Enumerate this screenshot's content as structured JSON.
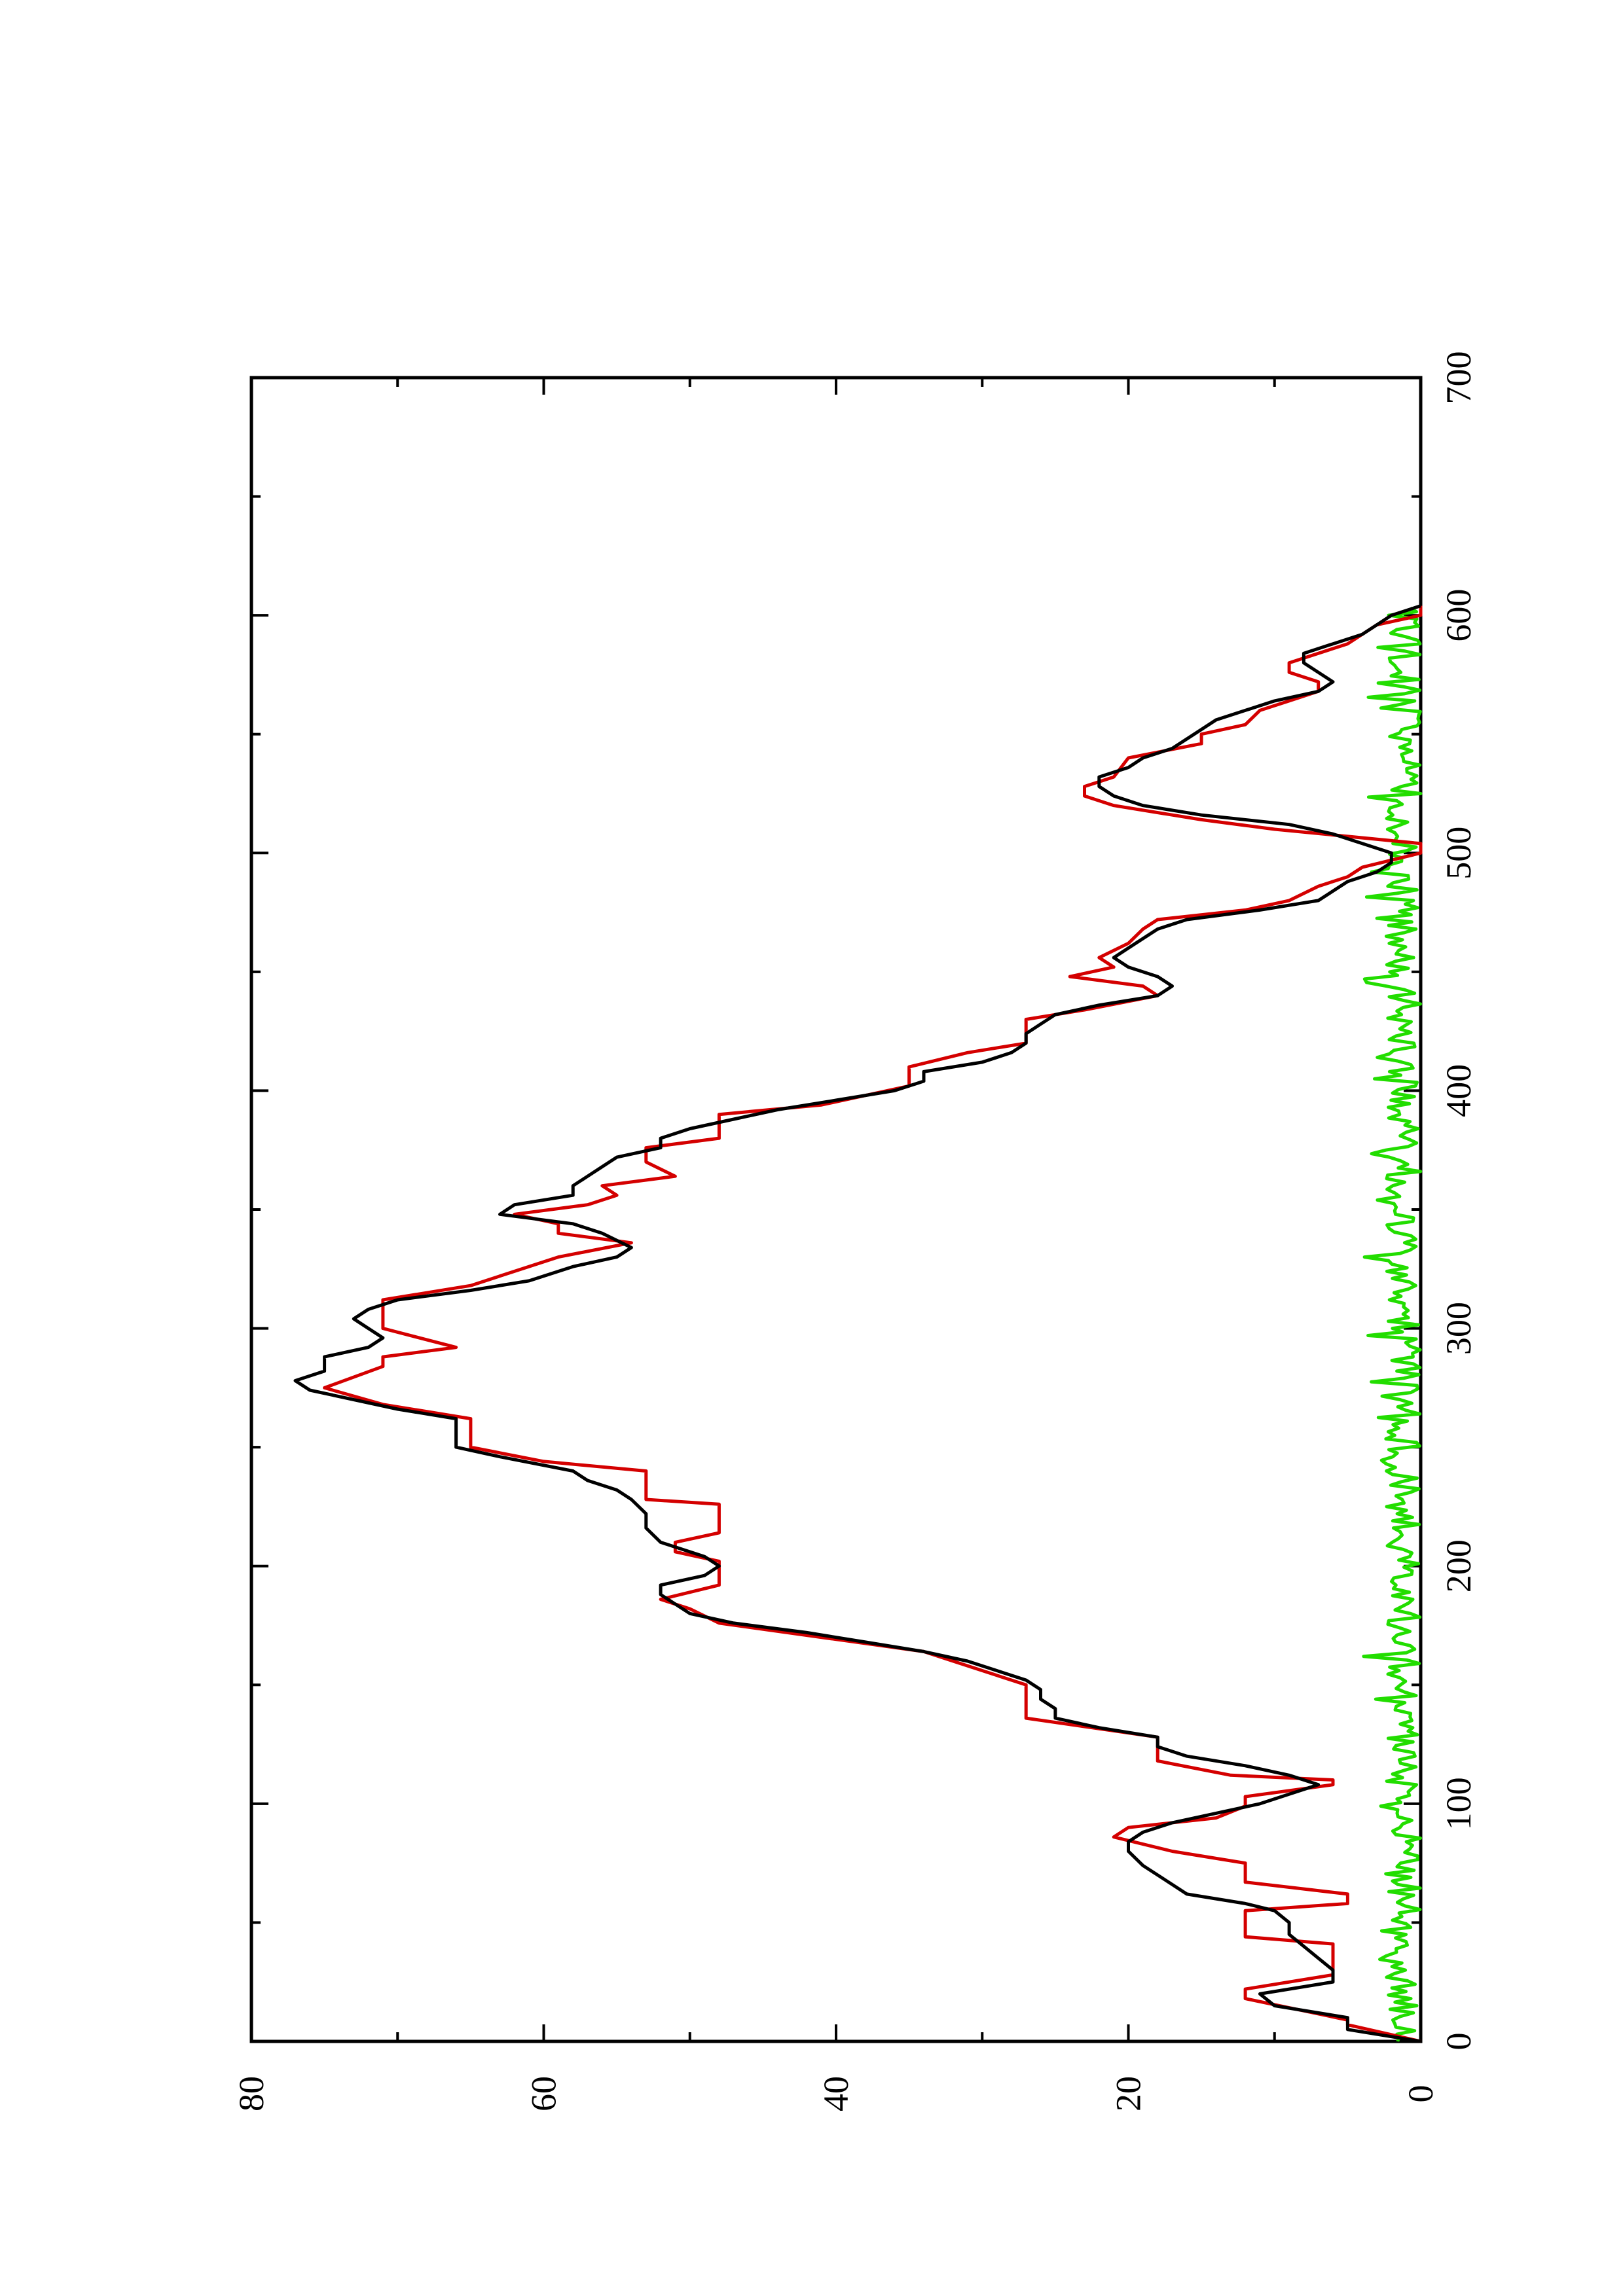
{
  "chart_data": {
    "type": "line",
    "orientation": "rotated 90 degrees counter-clockwise",
    "title": "",
    "xlabel": "",
    "ylabel": "",
    "xlim": [
      0,
      700
    ],
    "ylim": [
      0,
      80
    ],
    "x_ticks": [
      0,
      100,
      200,
      300,
      400,
      500,
      600,
      700
    ],
    "y_ticks": [
      0,
      20,
      40,
      60,
      80
    ],
    "x_tick_labels": [
      "0",
      "100",
      "200",
      "300",
      "400",
      "500",
      "600",
      "700"
    ],
    "y_tick_labels": [
      "0",
      "20",
      "40",
      "60",
      "80"
    ],
    "grid": false,
    "legend": "none",
    "series": [
      {
        "color": "#000000",
        "style": "smooth",
        "points": [
          [
            0,
            0
          ],
          [
            5,
            5
          ],
          [
            10,
            5
          ],
          [
            15,
            10
          ],
          [
            20,
            11
          ],
          [
            25,
            6
          ],
          [
            30,
            6
          ],
          [
            35,
            7
          ],
          [
            40,
            8
          ],
          [
            45,
            9
          ],
          [
            50,
            9
          ],
          [
            55,
            10
          ],
          [
            58,
            12
          ],
          [
            62,
            16
          ],
          [
            66,
            17
          ],
          [
            70,
            18
          ],
          [
            74,
            19
          ],
          [
            80,
            20
          ],
          [
            84,
            20
          ],
          [
            88,
            19
          ],
          [
            92,
            17
          ],
          [
            96,
            14
          ],
          [
            100,
            11
          ],
          [
            104,
            9
          ],
          [
            108,
            7
          ],
          [
            112,
            9
          ],
          [
            116,
            12
          ],
          [
            120,
            16
          ],
          [
            124,
            18
          ],
          [
            128,
            18
          ],
          [
            132,
            22
          ],
          [
            136,
            25
          ],
          [
            140,
            25
          ],
          [
            144,
            26
          ],
          [
            148,
            26
          ],
          [
            152,
            27
          ],
          [
            156,
            29
          ],
          [
            160,
            31
          ],
          [
            164,
            34
          ],
          [
            168,
            38
          ],
          [
            172,
            42
          ],
          [
            176,
            47
          ],
          [
            180,
            50
          ],
          [
            184,
            51
          ],
          [
            188,
            52
          ],
          [
            192,
            52
          ],
          [
            196,
            49
          ],
          [
            200,
            48
          ],
          [
            204,
            49
          ],
          [
            210,
            52
          ],
          [
            216,
            53
          ],
          [
            222,
            53
          ],
          [
            228,
            54
          ],
          [
            232,
            55
          ],
          [
            236,
            57
          ],
          [
            240,
            58
          ],
          [
            246,
            63
          ],
          [
            250,
            66
          ],
          [
            256,
            66
          ],
          [
            262,
            66
          ],
          [
            266,
            70
          ],
          [
            270,
            73
          ],
          [
            274,
            76
          ],
          [
            278,
            77
          ],
          [
            282,
            75
          ],
          [
            288,
            75
          ],
          [
            292,
            72
          ],
          [
            296,
            71
          ],
          [
            300,
            72
          ],
          [
            304,
            73
          ],
          [
            308,
            72
          ],
          [
            312,
            70
          ],
          [
            316,
            65
          ],
          [
            320,
            61
          ],
          [
            326,
            58
          ],
          [
            330,
            55
          ],
          [
            334,
            54
          ],
          [
            340,
            56
          ],
          [
            344,
            58
          ],
          [
            348,
            63
          ],
          [
            352,
            62
          ],
          [
            356,
            58
          ],
          [
            360,
            58
          ],
          [
            364,
            57
          ],
          [
            368,
            56
          ],
          [
            372,
            55
          ],
          [
            376,
            52
          ],
          [
            380,
            52
          ],
          [
            384,
            50
          ],
          [
            388,
            47
          ],
          [
            392,
            44
          ],
          [
            396,
            40
          ],
          [
            400,
            36
          ],
          [
            404,
            34
          ],
          [
            408,
            34
          ],
          [
            412,
            30
          ],
          [
            416,
            28
          ],
          [
            420,
            27
          ],
          [
            424,
            27
          ],
          [
            428,
            26
          ],
          [
            432,
            25
          ],
          [
            436,
            22
          ],
          [
            440,
            18
          ],
          [
            444,
            17
          ],
          [
            448,
            18
          ],
          [
            452,
            20
          ],
          [
            456,
            21
          ],
          [
            460,
            20
          ],
          [
            464,
            19
          ],
          [
            468,
            18
          ],
          [
            472,
            16
          ],
          [
            476,
            11
          ],
          [
            480,
            7
          ],
          [
            484,
            6
          ],
          [
            488,
            5
          ],
          [
            492,
            3
          ],
          [
            496,
            2
          ],
          [
            500,
            2
          ],
          [
            504,
            4
          ],
          [
            508,
            6
          ],
          [
            512,
            9
          ],
          [
            516,
            15
          ],
          [
            520,
            19
          ],
          [
            524,
            21
          ],
          [
            528,
            22
          ],
          [
            532,
            22
          ],
          [
            536,
            20
          ],
          [
            540,
            19
          ],
          [
            544,
            17
          ],
          [
            548,
            16
          ],
          [
            552,
            15
          ],
          [
            556,
            14
          ],
          [
            560,
            12
          ],
          [
            564,
            10
          ],
          [
            568,
            7
          ],
          [
            572,
            6
          ],
          [
            576,
            7
          ],
          [
            580,
            8
          ],
          [
            584,
            8
          ],
          [
            588,
            6
          ],
          [
            592,
            4
          ],
          [
            596,
            3
          ],
          [
            600,
            2
          ],
          [
            604,
            0
          ]
        ]
      },
      {
        "color": "#d40000",
        "style": "stepped",
        "points": [
          [
            0,
            0
          ],
          [
            7,
            5
          ],
          [
            9,
            5
          ],
          [
            18,
            12
          ],
          [
            22,
            12
          ],
          [
            28,
            6
          ],
          [
            33,
            6
          ],
          [
            38,
            6
          ],
          [
            41,
            6
          ],
          [
            44,
            12
          ],
          [
            55,
            12
          ],
          [
            58,
            5
          ],
          [
            62,
            5
          ],
          [
            67,
            12
          ],
          [
            75,
            12
          ],
          [
            80,
            17
          ],
          [
            86,
            21
          ],
          [
            90,
            20
          ],
          [
            94,
            14
          ],
          [
            99,
            12
          ],
          [
            103,
            12
          ],
          [
            108,
            6
          ],
          [
            110,
            6
          ],
          [
            112,
            13
          ],
          [
            118,
            18
          ],
          [
            128,
            18
          ],
          [
            136,
            27
          ],
          [
            150,
            27
          ],
          [
            164,
            34
          ],
          [
            176,
            48
          ],
          [
            182,
            50
          ],
          [
            186,
            52
          ],
          [
            192,
            48
          ],
          [
            198,
            48
          ],
          [
            202,
            48
          ],
          [
            206,
            51
          ],
          [
            210,
            51
          ],
          [
            214,
            48
          ],
          [
            226,
            48
          ],
          [
            228,
            53
          ],
          [
            240,
            53
          ],
          [
            244,
            60
          ],
          [
            250,
            65
          ],
          [
            262,
            65
          ],
          [
            268,
            71
          ],
          [
            275,
            75
          ],
          [
            284,
            71
          ],
          [
            288,
            71
          ],
          [
            292,
            66
          ],
          [
            300,
            71
          ],
          [
            312,
            71
          ],
          [
            318,
            65
          ],
          [
            330,
            59
          ],
          [
            336,
            54
          ],
          [
            340,
            59
          ],
          [
            344,
            59
          ],
          [
            348,
            62
          ],
          [
            352,
            57
          ],
          [
            356,
            55
          ],
          [
            360,
            56
          ],
          [
            364,
            51
          ],
          [
            370,
            53
          ],
          [
            376,
            53
          ],
          [
            380,
            48
          ],
          [
            390,
            48
          ],
          [
            394,
            41
          ],
          [
            402,
            35
          ],
          [
            410,
            35
          ],
          [
            416,
            31
          ],
          [
            420,
            27
          ],
          [
            430,
            27
          ],
          [
            434,
            23
          ],
          [
            440,
            18
          ],
          [
            444,
            19
          ],
          [
            448,
            24
          ],
          [
            452,
            21
          ],
          [
            456,
            22
          ],
          [
            462,
            20
          ],
          [
            468,
            19
          ],
          [
            472,
            18
          ],
          [
            476,
            12
          ],
          [
            480,
            9
          ],
          [
            486,
            7
          ],
          [
            490,
            5
          ],
          [
            494,
            4
          ],
          [
            500,
            0
          ],
          [
            504,
            0
          ],
          [
            510,
            10
          ],
          [
            514,
            15
          ],
          [
            520,
            21
          ],
          [
            524,
            23
          ],
          [
            528,
            23
          ],
          [
            532,
            21
          ],
          [
            540,
            20
          ],
          [
            546,
            15
          ],
          [
            550,
            15
          ],
          [
            554,
            12
          ],
          [
            560,
            11
          ],
          [
            564,
            9
          ],
          [
            568,
            7
          ],
          [
            572,
            7
          ],
          [
            576,
            9
          ],
          [
            580,
            9
          ],
          [
            584,
            7
          ],
          [
            588,
            5
          ],
          [
            596,
            3
          ],
          [
            600,
            0
          ],
          [
            604,
            0
          ]
        ]
      },
      {
        "color": "#22dd00",
        "style": "noisy",
        "amplitude_range": [
          0,
          4
        ],
        "x_range": [
          0,
          604
        ]
      }
    ]
  }
}
